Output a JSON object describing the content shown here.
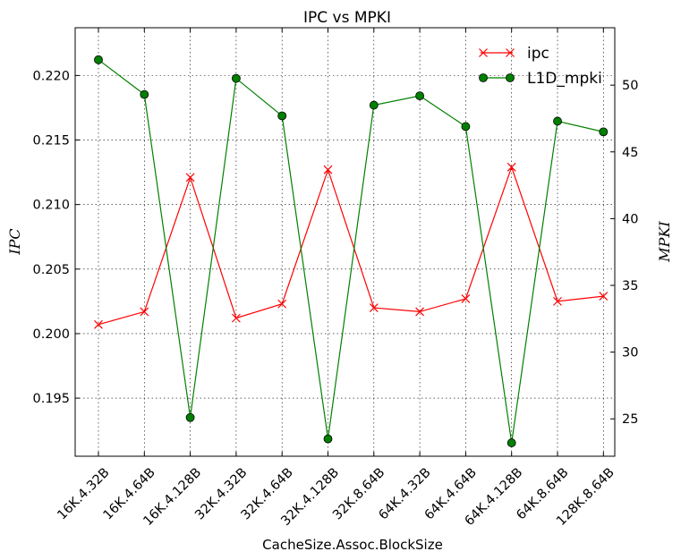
{
  "chart_data": {
    "type": "line",
    "title": "IPC vs MPKI",
    "xlabel": "CacheSize.Assoc.BlockSize",
    "ylabel_left": "IPC",
    "ylabel_right": "MPKI",
    "categories": [
      "16K.4.32B",
      "16K.4.64B",
      "16K.4.128B",
      "32K.4.32B",
      "32K.4.64B",
      "32K.4.128B",
      "32K.8.64B",
      "64K.4.32B",
      "64K.4.64B",
      "64K.4.128B",
      "64K.8.64B",
      "128K.8.64B"
    ],
    "y_left_ticks": [
      "0.195",
      "0.200",
      "0.205",
      "0.210",
      "0.215",
      "0.220"
    ],
    "y_right_ticks": [
      "25",
      "30",
      "35",
      "40",
      "45",
      "50"
    ],
    "ylim_left": [
      0.1905,
      0.2237
    ],
    "ylim_right": [
      22.2,
      54.3
    ],
    "grid": true,
    "legend_position": "top-right",
    "series": [
      {
        "name": "ipc",
        "axis": "left",
        "color": "#ff0000",
        "marker": "x",
        "values": [
          0.2007,
          0.2017,
          0.2121,
          0.2012,
          0.2023,
          0.2127,
          0.202,
          0.2017,
          0.2027,
          0.2129,
          0.2025,
          0.2029
        ]
      },
      {
        "name": "L1D_mpki",
        "axis": "right",
        "color": "#008000",
        "marker": "o",
        "values": [
          51.9,
          49.3,
          25.1,
          50.5,
          47.7,
          23.5,
          48.5,
          49.2,
          46.9,
          23.2,
          47.3,
          46.5
        ]
      }
    ]
  }
}
